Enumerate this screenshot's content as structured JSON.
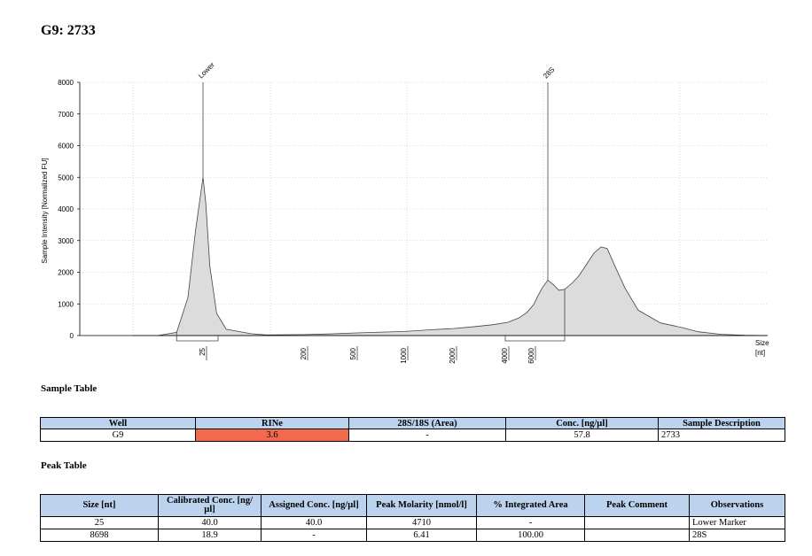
{
  "title": "G9: 2733",
  "chart_data": {
    "type": "area",
    "ylabel": "Sample Intensity [Normalized FU]",
    "xlabel": "Size [nt]",
    "xlabel_lines": [
      "Size",
      "[nt]"
    ],
    "ylim": [
      0,
      8000
    ],
    "yticks": [
      0,
      1000,
      2000,
      3000,
      4000,
      5000,
      6000,
      7000,
      8000
    ],
    "yticks_labels": [
      "0",
      "1000",
      "2000",
      "3000",
      "4000",
      "5000",
      "6000",
      "7000",
      "8000"
    ],
    "xticks": [
      {
        "value": 25,
        "label": "25"
      },
      {
        "value": 200,
        "label": "200"
      },
      {
        "value": 500,
        "label": "500"
      },
      {
        "value": 1000,
        "label": "1000"
      },
      {
        "value": 2000,
        "label": "2000"
      },
      {
        "value": 4000,
        "label": "4000"
      },
      {
        "value": 6000,
        "label": "6000"
      }
    ],
    "grid": true,
    "series": [
      {
        "x": [
          5,
          13,
          18,
          21,
          23,
          25,
          27,
          30,
          35,
          42,
          60,
          100,
          200,
          350,
          500,
          700,
          1000,
          1500,
          2000,
          2700,
          3500,
          4200,
          5000,
          5600,
          6300,
          7000,
          7800,
          8698,
          9500,
          10200,
          11000,
          11500,
          12000,
          12500,
          13000,
          13500,
          14000,
          14500,
          15200,
          16000,
          17500,
          19000,
          21000,
          24000,
          27000,
          30000
        ],
        "y": [
          0,
          0,
          100,
          1200,
          3300,
          5000,
          4200,
          2200,
          700,
          200,
          60,
          20,
          30,
          50,
          80,
          100,
          130,
          180,
          220,
          270,
          340,
          420,
          550,
          720,
          980,
          1250,
          1520,
          1750,
          1600,
          1430,
          1460,
          1650,
          1900,
          2250,
          2600,
          2800,
          2750,
          2300,
          1500,
          800,
          400,
          250,
          120,
          40,
          10,
          0
        ]
      }
    ],
    "peaks": [
      {
        "label": "Lower",
        "x": 25,
        "range": [
          18,
          36
        ]
      },
      {
        "label": "28S",
        "x": 8698,
        "range": [
          4000,
          11000
        ]
      }
    ]
  },
  "sample_table": {
    "title": "Sample Table",
    "headers": [
      "Well",
      "RINe",
      "28S/18S (Area)",
      "Conc. [ng/µl]",
      "Sample Description"
    ],
    "rows": [
      {
        "well": "G9",
        "rine": "3.6",
        "ratio": "-",
        "conc": "57.8",
        "description": "2733"
      }
    ],
    "rine_color": "#f26a4b"
  },
  "peak_table": {
    "title": "Peak Table",
    "headers": [
      "Size [nt]",
      "Calibrated Conc. [ng/µl]",
      "Assigned Conc. [ng/µl]",
      "Peak Molarity [nmol/l]",
      "% Integrated Area",
      "Peak Comment",
      "Observations"
    ],
    "rows": [
      {
        "size": "25",
        "calibrated": "40.0",
        "assigned": "40.0",
        "molarity": "4710",
        "area": "-",
        "comment": "",
        "observations": "Lower Marker"
      },
      {
        "size": "8698",
        "calibrated": "18.9",
        "assigned": "-",
        "molarity": "6.41",
        "area": "100.00",
        "comment": "",
        "observations": "28S"
      }
    ]
  },
  "colors": {
    "fill": "#dcdcdc",
    "line": "#444444",
    "header": "#bcd3ee"
  }
}
